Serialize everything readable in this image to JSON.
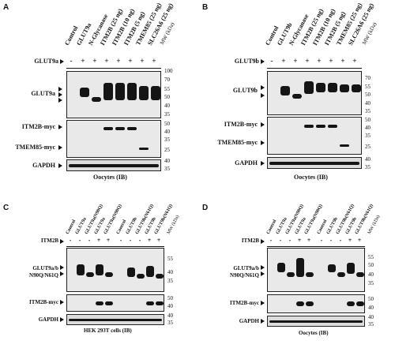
{
  "panels": [
    {
      "id": "A",
      "lanes": [
        "Control",
        "GLUT9a",
        "N-Glycanase",
        "ITM2B (25 ng)",
        "ITM2B (10 ng)",
        "ITM2B (5 ng)",
        "TMEM85 (25 ng)",
        "SLC26A6 (25 ng)"
      ],
      "mw_header": "MW (kDa)",
      "treatment_label": "GLUT9a",
      "signs": [
        "-",
        "+",
        "+",
        "+",
        "+",
        "+",
        "+",
        "+"
      ],
      "rows": [
        {
          "label": "GLUT9a",
          "markers": [
            "100",
            "70",
            "55",
            "50",
            "40",
            "35"
          ]
        },
        {
          "label": "ITM2B-myc",
          "markers": [
            "50",
            "40",
            "35"
          ]
        },
        {
          "label": "TMEM85-myc",
          "markers": [
            "25"
          ]
        },
        {
          "label": "GAPDH",
          "markers": [
            "40",
            "35"
          ]
        }
      ],
      "caption": "Oocytes (IB)"
    },
    {
      "id": "B",
      "lanes": [
        "Control",
        "GLUT9b",
        "N-Glycanase",
        "ITM2B (25 ng)",
        "ITM2B (10 ng)",
        "ITM2B (5 ng)",
        "TMEM85 (25 ng)",
        "SLC26A6 (25 ng)"
      ],
      "mw_header": "MW (kDa)",
      "treatment_label": "GLUT9b",
      "signs": [
        "-",
        "+",
        "+",
        "+",
        "+",
        "+",
        "+",
        "+"
      ],
      "rows": [
        {
          "label": "GLUT9b",
          "markers": [
            "70",
            "55",
            "50",
            "40",
            "35"
          ]
        },
        {
          "label": "ITM2B-myc",
          "markers": [
            "50",
            "40",
            "35"
          ]
        },
        {
          "label": "TMEM85-myc",
          "markers": [
            "25"
          ]
        },
        {
          "label": "GAPDH",
          "markers": [
            "40",
            "35"
          ]
        }
      ],
      "caption": "Oocytes (IB)"
    },
    {
      "id": "C",
      "lanes": [
        "Control",
        "GLUT9a",
        "GLUT9a(N90Q)",
        "GLUT9a",
        "GLUT9a(N90Q)",
        "Control",
        "GLUT9b",
        "GLUT9b(N61Q)",
        "GLUT9b",
        "GLUT9b(N61Q)"
      ],
      "mw_header": "MW (kDa)",
      "treatment_label": "ITM2B",
      "signs": [
        "-",
        "-",
        "-",
        "+",
        "+",
        "-",
        "-",
        "-",
        "+",
        "+"
      ],
      "rows": [
        {
          "label": "GLUT9a/b",
          "label2": "N90Q/N61Q",
          "markers": [
            "55",
            "40",
            "35"
          ]
        },
        {
          "label": "ITM2B-myc",
          "markers": [
            "50",
            "40"
          ]
        },
        {
          "label": "GAPDH",
          "markers": [
            "40",
            "35"
          ]
        }
      ],
      "caption": "HEK 293T cells (IB)"
    },
    {
      "id": "D",
      "lanes": [
        "Control",
        "GLUT9a",
        "GLUT9a(N90Q)",
        "GLUT9a",
        "GLUT9a(N90Q)",
        "Control",
        "GLUT9b",
        "GLUT9b(N61Q)",
        "GLUT9b",
        "GLUT9b(N61Q)"
      ],
      "mw_header": "MW (kDa)",
      "treatment_label": "ITM2B",
      "signs": [
        "-",
        "-",
        "-",
        "+",
        "+",
        "-",
        "-",
        "-",
        "+",
        "+"
      ],
      "rows": [
        {
          "label": "GLUT9a/b",
          "label2": "N90Q/N61Q",
          "markers": [
            "55",
            "50",
            "40",
            "35"
          ]
        },
        {
          "label": "ITM2B-myc",
          "markers": [
            "50",
            "40"
          ]
        },
        {
          "label": "GAPDH",
          "markers": [
            "40",
            "35"
          ]
        }
      ],
      "caption": "Oocytes (IB)"
    }
  ]
}
